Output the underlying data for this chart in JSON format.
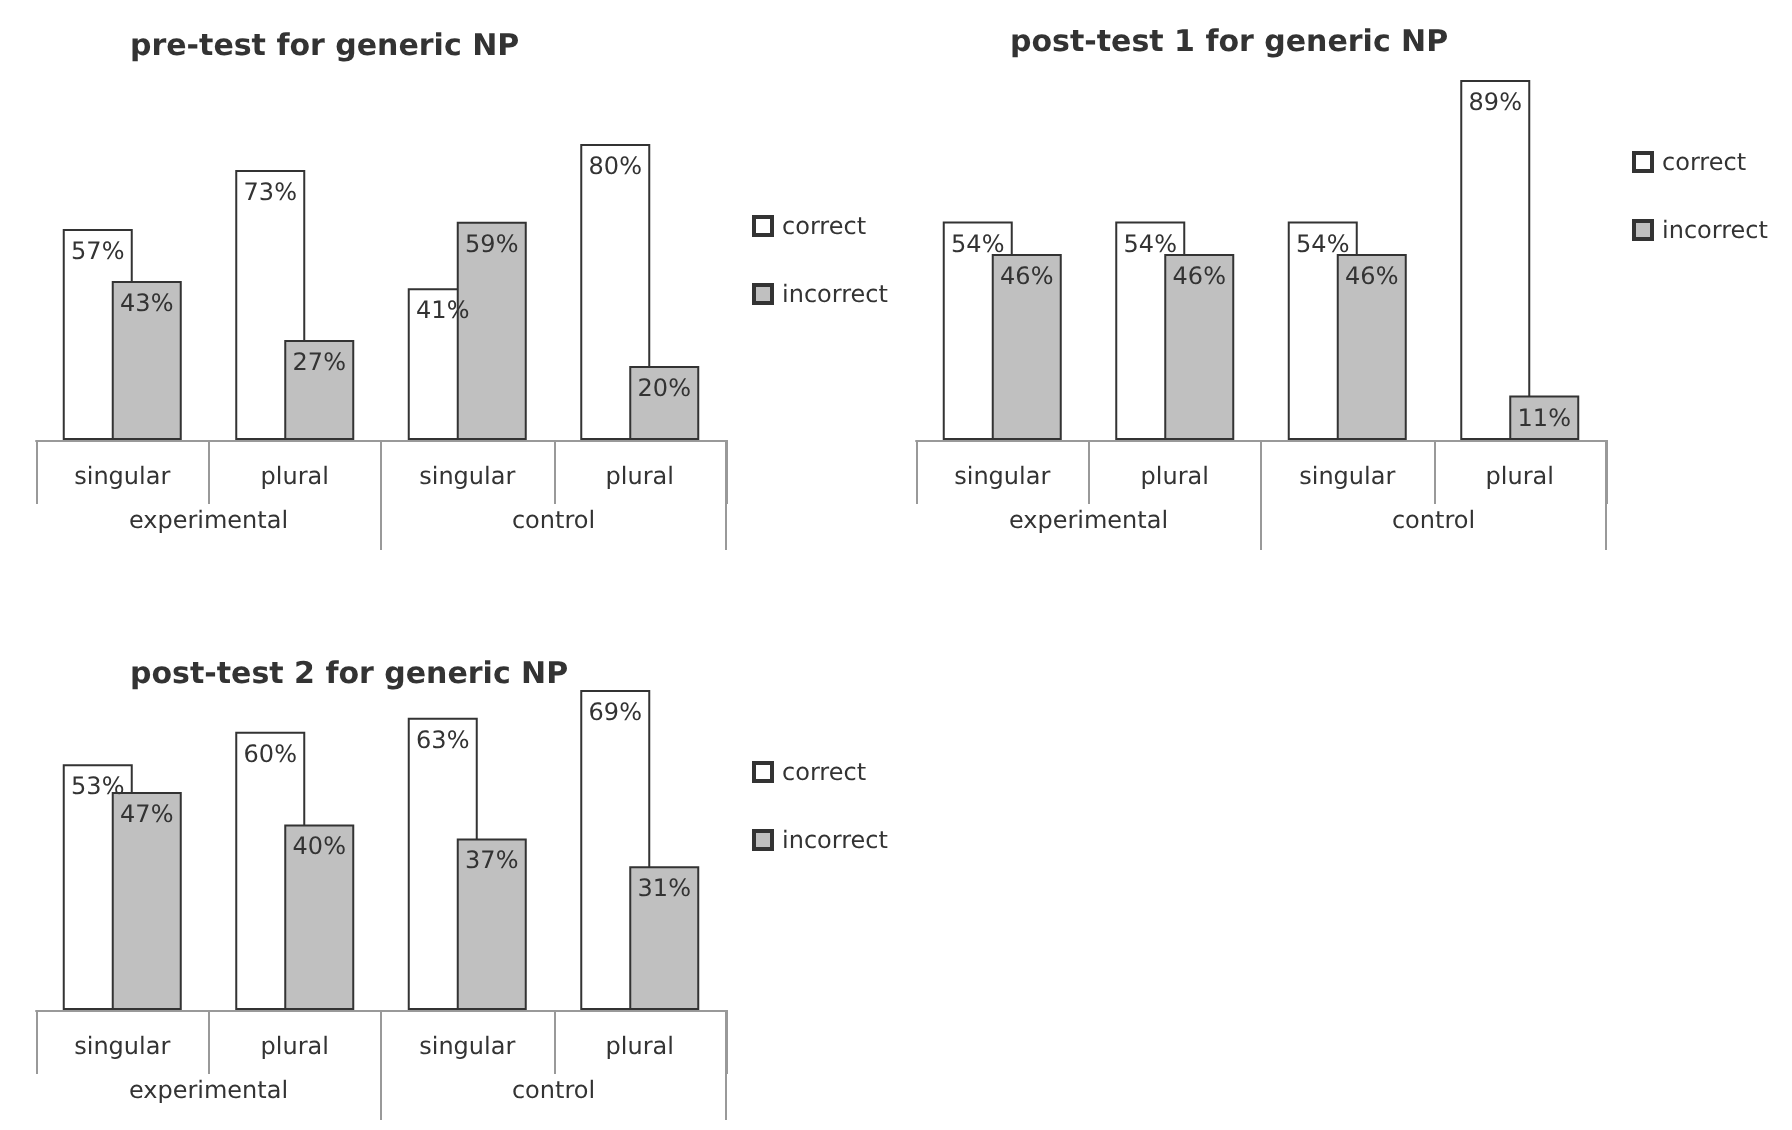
{
  "chart_data": [
    {
      "type": "bar",
      "title": "pre-test for generic NP",
      "categories": [
        "singular",
        "plural",
        "singular",
        "plural"
      ],
      "annotations": [
        "experimental",
        "control"
      ],
      "legend": "right",
      "data_labels": true,
      "series": [
        {
          "name": "correct",
          "color": "#ffffff",
          "values": [
            57,
            73,
            41,
            80
          ],
          "value_labels": [
            "57%",
            "73%",
            "41%",
            "80%"
          ]
        },
        {
          "name": "incorrect",
          "color": "#c0c0c0",
          "values": [
            43,
            27,
            59,
            20
          ],
          "value_labels": [
            "43%",
            "27%",
            "59%",
            "20%"
          ]
        }
      ]
    },
    {
      "type": "bar",
      "title": "post-test 1 for generic NP",
      "categories": [
        "singular",
        "plural",
        "singular",
        "plural"
      ],
      "annotations": [
        "experimental",
        "control"
      ],
      "legend": "right",
      "data_labels": true,
      "series": [
        {
          "name": "correct",
          "color": "#ffffff",
          "values": [
            54,
            54,
            54,
            89
          ],
          "value_labels": [
            "54%",
            "54%",
            "54%",
            "89%"
          ]
        },
        {
          "name": "incorrect",
          "color": "#c0c0c0",
          "values": [
            46,
            46,
            46,
            11
          ],
          "value_labels": [
            "46%",
            "46%",
            "46%",
            "11%"
          ]
        }
      ]
    },
    {
      "type": "bar",
      "title": "post-test 2 for generic NP",
      "categories": [
        "singular",
        "plural",
        "singular",
        "plural"
      ],
      "annotations": [
        "experimental",
        "control"
      ],
      "legend": "right",
      "data_labels": true,
      "series": [
        {
          "name": "correct",
          "color": "#ffffff",
          "values": [
            53,
            60,
            63,
            69
          ],
          "value_labels": [
            "53%",
            "60%",
            "63%",
            "69%"
          ]
        },
        {
          "name": "incorrect",
          "color": "#c0c0c0",
          "values": [
            47,
            40,
            37,
            31
          ],
          "value_labels": [
            "47%",
            "40%",
            "37%",
            "31%"
          ]
        }
      ]
    }
  ]
}
